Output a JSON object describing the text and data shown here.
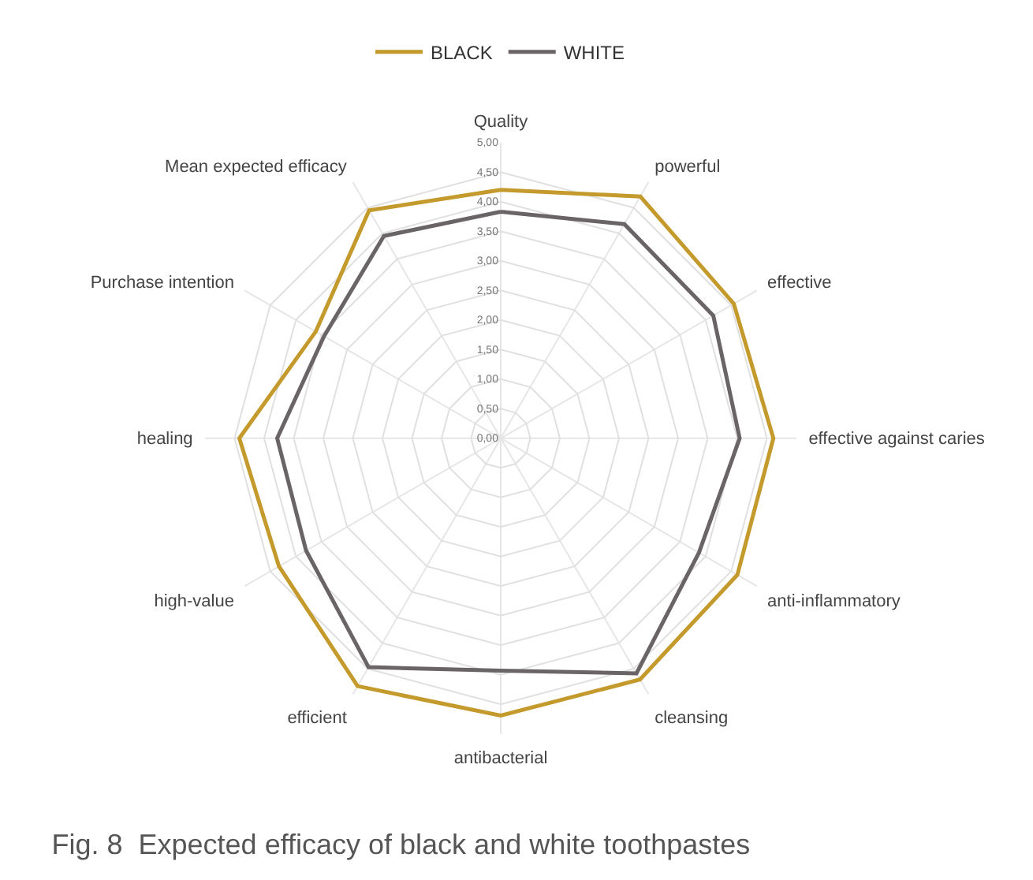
{
  "chart_data": {
    "type": "radar",
    "title": "Fig. 8  Expected efficacy of black and white toothpastes",
    "categories": [
      "Quality",
      "powerful",
      "effective",
      "effective against caries",
      "anti-inflammatory",
      "cleansing",
      "antibacterial",
      "efficient",
      "high-value",
      "healing",
      "Purchase intention",
      "Mean expected efficacy"
    ],
    "series": [
      {
        "name": "BLACK",
        "color": "#c59a2c",
        "values": [
          4.2,
          4.72,
          4.55,
          4.61,
          4.62,
          4.71,
          4.69,
          4.84,
          4.33,
          4.42,
          3.61,
          4.45
        ]
      },
      {
        "name": "WHITE",
        "color": "#6b6466",
        "values": [
          3.83,
          4.18,
          4.15,
          4.04,
          3.87,
          4.59,
          3.93,
          4.47,
          3.8,
          3.78,
          3.45,
          3.95
        ]
      }
    ],
    "ylim": [
      0,
      5
    ],
    "yticks": [
      {
        "value": 0,
        "label": "0,00"
      },
      {
        "value": 0.5,
        "label": "0,50"
      },
      {
        "value": 1,
        "label": "1,00"
      },
      {
        "value": 1.5,
        "label": "1,50"
      },
      {
        "value": 2,
        "label": "2,00"
      },
      {
        "value": 2.5,
        "label": "2,50"
      },
      {
        "value": 3,
        "label": "3,00"
      },
      {
        "value": 3.5,
        "label": "3,50"
      },
      {
        "value": 4,
        "label": "4,00"
      },
      {
        "value": 4.5,
        "label": "4,50"
      },
      {
        "value": 5,
        "label": "5,00"
      }
    ],
    "grid": true,
    "legend": "top",
    "marker": "none",
    "line_style": "solid"
  }
}
